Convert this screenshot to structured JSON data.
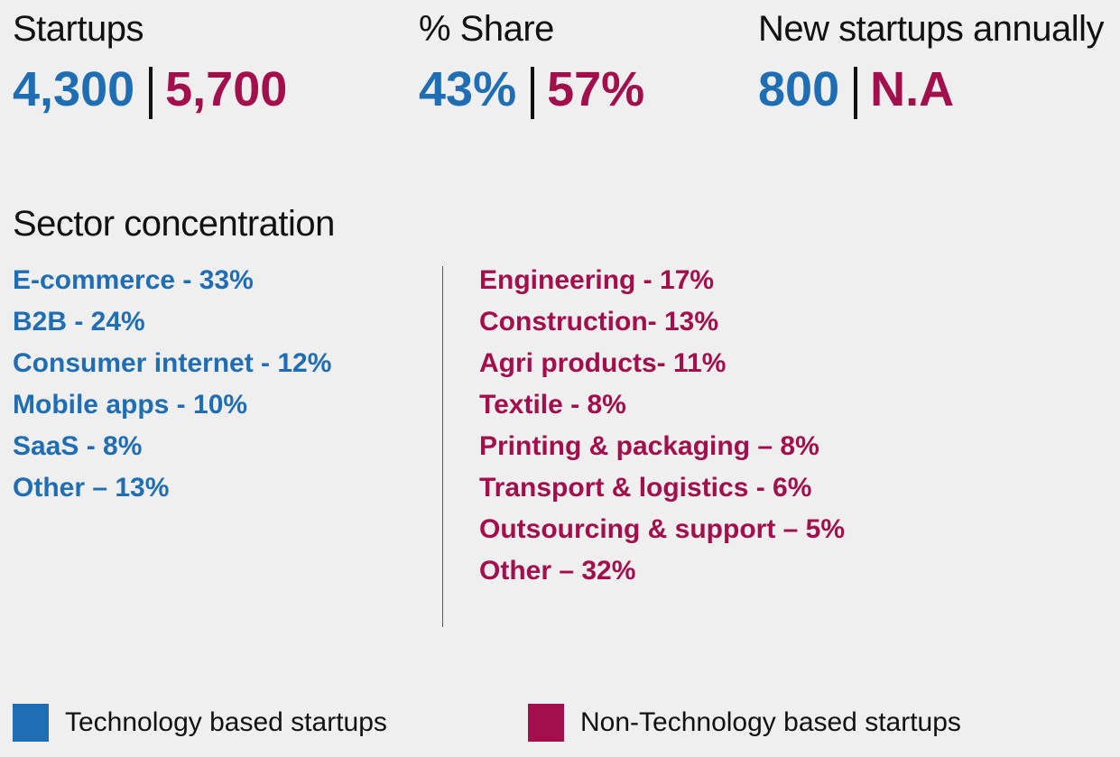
{
  "colors": {
    "tech": "#1f6eb3",
    "nontech": "#a30e4c"
  },
  "stats": [
    {
      "label": "Startups",
      "tech_value": "4,300",
      "nontech_value": "5,700"
    },
    {
      "label": "% Share",
      "tech_value": "43%",
      "nontech_value": "57%"
    },
    {
      "label": "New startups annually",
      "tech_value": "800",
      "nontech_value": "N.A"
    }
  ],
  "sector": {
    "title": "Sector concentration",
    "tech": [
      "E-commerce - 33%",
      "B2B - 24%",
      "Consumer internet - 12%",
      "Mobile apps - 10%",
      "SaaS - 8%",
      "Other – 13%"
    ],
    "nontech": [
      "Engineering - 17%",
      "Construction- 13%",
      "Agri products- 11%",
      "Textile - 8%",
      "Printing & packaging – 8%",
      "Transport & logistics - 6%",
      "Outsourcing & support – 5%",
      "Other – 32%"
    ]
  },
  "legend": {
    "tech_label": "Technology based startups",
    "nontech_label": "Non-Technology based startups"
  }
}
